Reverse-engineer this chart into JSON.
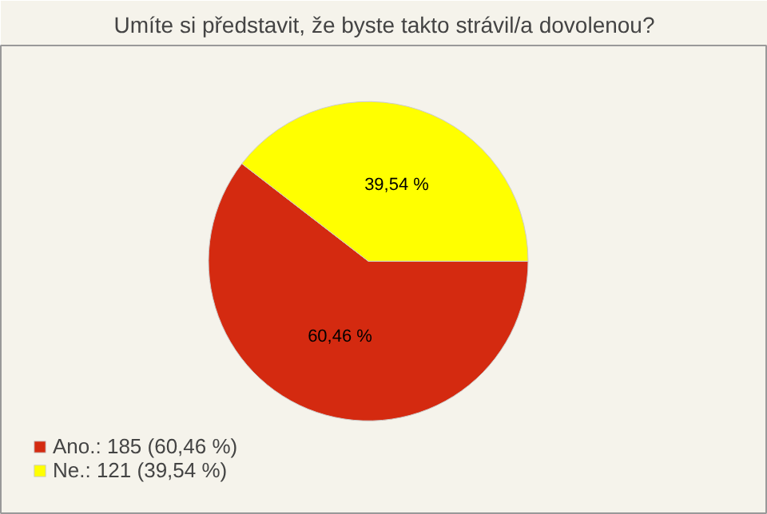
{
  "chart_data": {
    "type": "pie",
    "title": "Umíte si představit, že byste takto strávil/a dovolenou?",
    "categories": [
      "Ano.: 185 (60,46 %)",
      "Ne.: 121 (39,54 %)"
    ],
    "values": [
      60.46,
      39.54
    ],
    "value_labels": [
      "60,46 %",
      "39,54 %"
    ],
    "colors": [
      "#d42a10",
      "#ffff00"
    ],
    "legend": "bottom left"
  }
}
